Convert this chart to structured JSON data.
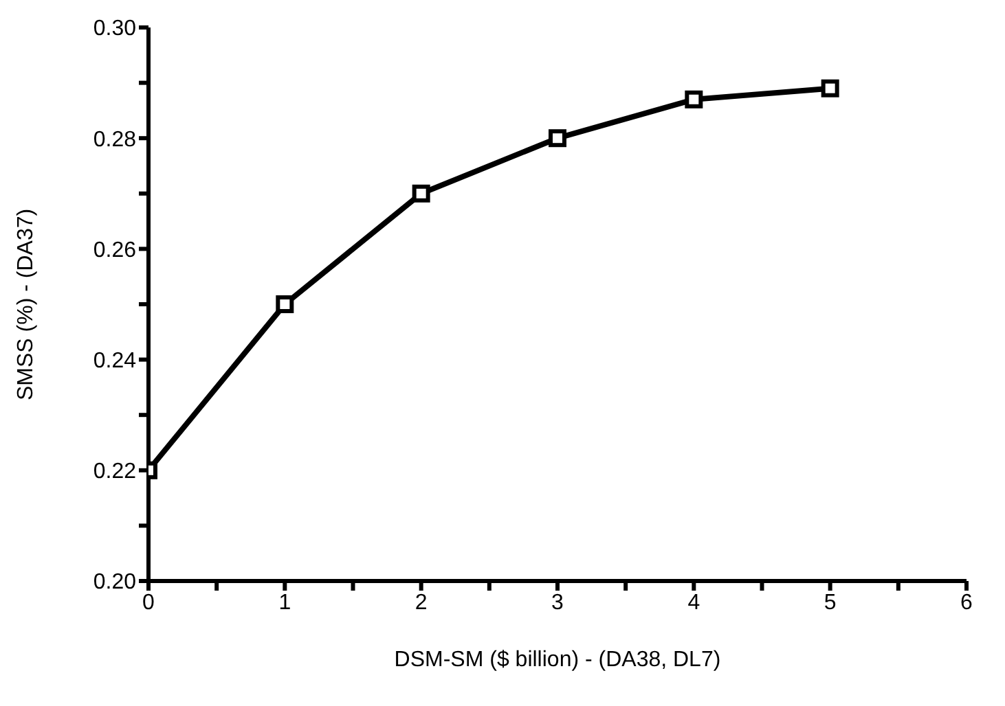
{
  "chart_data": {
    "type": "line",
    "xlabel": "DSM-SM ($ billion) - (DA38, DL7)",
    "ylabel": "SMSS (%) - (DA37)",
    "x": [
      0,
      1,
      2,
      3,
      4,
      5
    ],
    "series": [
      {
        "color": "#000000",
        "values": [
          0.22,
          0.25,
          0.27,
          0.28,
          0.287,
          0.289
        ]
      }
    ],
    "xlim": [
      0,
      6
    ],
    "xticks": [
      0,
      {
        "value": 0.5,
        "label": null
      },
      1,
      {
        "value": 1.5,
        "label": null
      },
      2,
      {
        "value": 2.5,
        "label": null
      },
      3,
      {
        "value": 3.5,
        "label": null
      },
      4,
      {
        "value": 4.5,
        "label": null
      },
      5,
      {
        "value": 5.5,
        "label": null
      },
      6
    ],
    "ylim": [
      0.2,
      0.3
    ],
    "yticks": [
      {
        "value": 0.2,
        "label": "0.20"
      },
      {
        "value": 0.21,
        "label": null
      },
      {
        "value": 0.22,
        "label": "0.22"
      },
      {
        "value": 0.23,
        "label": null
      },
      {
        "value": 0.24,
        "label": "0.24"
      },
      {
        "value": 0.25,
        "label": null
      },
      {
        "value": 0.26,
        "label": "0.26"
      },
      {
        "value": 0.27,
        "label": null
      },
      {
        "value": 0.28,
        "label": "0.28"
      },
      {
        "value": 0.29,
        "label": null
      },
      {
        "value": 0.3,
        "label": "0.30"
      }
    ],
    "marker": "square",
    "line_style": "solid",
    "grid": false,
    "legend": false
  }
}
